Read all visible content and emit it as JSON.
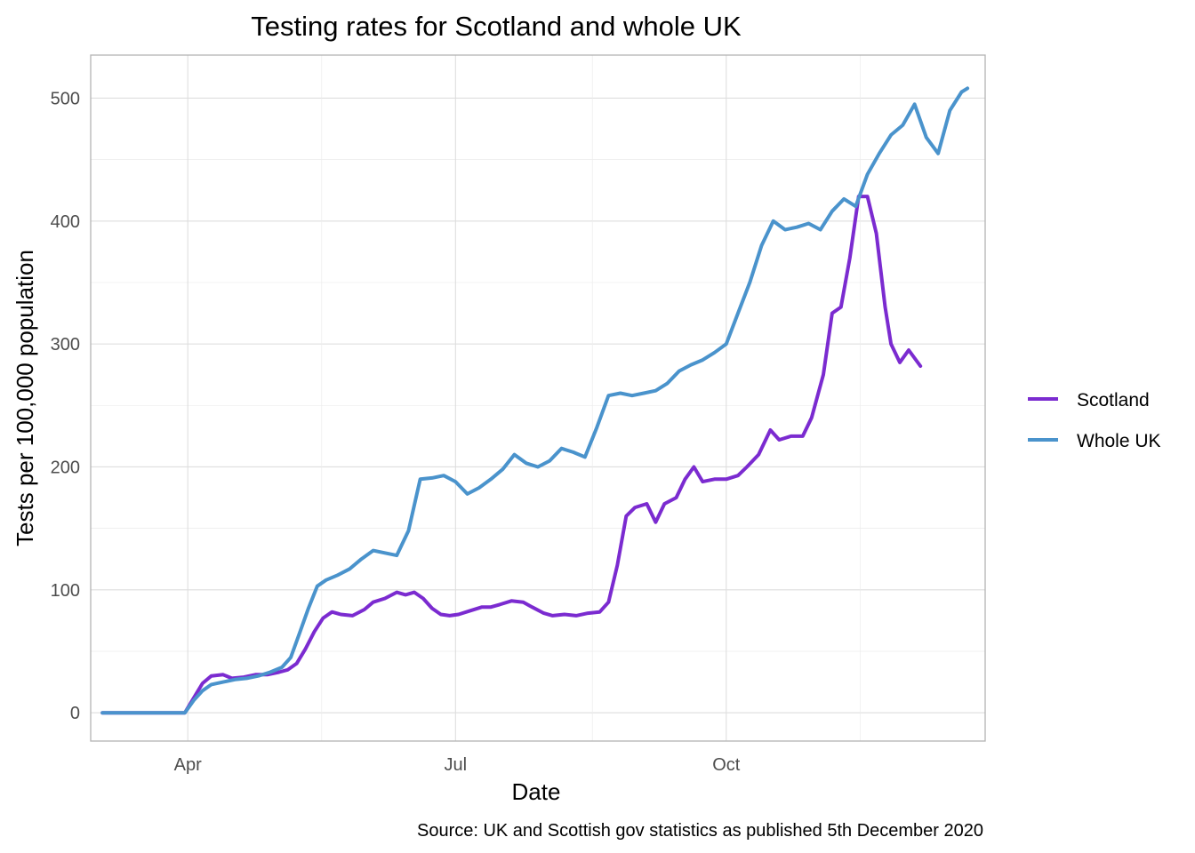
{
  "chart_data": {
    "type": "line",
    "title": "Testing rates for Scotland and whole UK",
    "xlabel": "Date",
    "ylabel": "Tests per 100,000 population",
    "caption": "Source: UK and Scottish gov statistics as published 5th December 2020",
    "x_ticks": [
      "Apr",
      "Jul",
      "Oct"
    ],
    "x_tick_dates": [
      "2020-04-01",
      "2020-07-01",
      "2020-10-01"
    ],
    "xlim": [
      "2020-02-28",
      "2020-12-28"
    ],
    "y_ticks": [
      0,
      100,
      200,
      300,
      400,
      500
    ],
    "ylim": [
      -23,
      535
    ],
    "grid": true,
    "legend_position": "right",
    "series": [
      {
        "name": "Scotland",
        "color": "#7b2bd0",
        "points": [
          [
            "2020-03-03",
            0
          ],
          [
            "2020-03-31",
            0
          ],
          [
            "2020-04-03",
            12
          ],
          [
            "2020-04-06",
            24
          ],
          [
            "2020-04-09",
            30
          ],
          [
            "2020-04-13",
            31
          ],
          [
            "2020-04-16",
            28
          ],
          [
            "2020-04-20",
            29
          ],
          [
            "2020-04-24",
            31
          ],
          [
            "2020-04-28",
            31
          ],
          [
            "2020-05-02",
            33
          ],
          [
            "2020-05-05",
            35
          ],
          [
            "2020-05-08",
            40
          ],
          [
            "2020-05-11",
            52
          ],
          [
            "2020-05-14",
            66
          ],
          [
            "2020-05-17",
            77
          ],
          [
            "2020-05-20",
            82
          ],
          [
            "2020-05-23",
            80
          ],
          [
            "2020-05-27",
            79
          ],
          [
            "2020-05-31",
            84
          ],
          [
            "2020-06-03",
            90
          ],
          [
            "2020-06-07",
            93
          ],
          [
            "2020-06-11",
            98
          ],
          [
            "2020-06-14",
            96
          ],
          [
            "2020-06-17",
            98
          ],
          [
            "2020-06-20",
            93
          ],
          [
            "2020-06-23",
            85
          ],
          [
            "2020-06-26",
            80
          ],
          [
            "2020-06-29",
            79
          ],
          [
            "2020-07-02",
            80
          ],
          [
            "2020-07-06",
            83
          ],
          [
            "2020-07-10",
            86
          ],
          [
            "2020-07-13",
            86
          ],
          [
            "2020-07-16",
            88
          ],
          [
            "2020-07-20",
            91
          ],
          [
            "2020-07-24",
            90
          ],
          [
            "2020-07-27",
            86
          ],
          [
            "2020-07-31",
            81
          ],
          [
            "2020-08-03",
            79
          ],
          [
            "2020-08-07",
            80
          ],
          [
            "2020-08-11",
            79
          ],
          [
            "2020-08-15",
            81
          ],
          [
            "2020-08-19",
            82
          ],
          [
            "2020-08-22",
            90
          ],
          [
            "2020-08-25",
            120
          ],
          [
            "2020-08-28",
            160
          ],
          [
            "2020-08-31",
            167
          ],
          [
            "2020-09-04",
            170
          ],
          [
            "2020-09-07",
            155
          ],
          [
            "2020-09-10",
            170
          ],
          [
            "2020-09-14",
            175
          ],
          [
            "2020-09-17",
            190
          ],
          [
            "2020-09-20",
            200
          ],
          [
            "2020-09-23",
            188
          ],
          [
            "2020-09-27",
            190
          ],
          [
            "2020-10-01",
            190
          ],
          [
            "2020-10-05",
            193
          ],
          [
            "2020-10-08",
            200
          ],
          [
            "2020-10-12",
            210
          ],
          [
            "2020-10-16",
            230
          ],
          [
            "2020-10-19",
            222
          ],
          [
            "2020-10-23",
            225
          ],
          [
            "2020-10-27",
            225
          ],
          [
            "2020-10-30",
            240
          ],
          [
            "2020-11-03",
            275
          ],
          [
            "2020-11-06",
            325
          ],
          [
            "2020-11-09",
            330
          ],
          [
            "2020-11-12",
            370
          ],
          [
            "2020-11-15",
            420
          ],
          [
            "2020-11-18",
            420
          ],
          [
            "2020-11-21",
            390
          ],
          [
            "2020-11-24",
            330
          ],
          [
            "2020-11-26",
            300
          ],
          [
            "2020-11-29",
            285
          ],
          [
            "2020-12-02",
            295
          ],
          [
            "2020-12-06",
            282
          ]
        ]
      },
      {
        "name": "Whole UK",
        "color": "#4a93cc",
        "points": [
          [
            "2020-03-03",
            0
          ],
          [
            "2020-03-31",
            0
          ],
          [
            "2020-04-03",
            10
          ],
          [
            "2020-04-06",
            18
          ],
          [
            "2020-04-09",
            23
          ],
          [
            "2020-04-13",
            25
          ],
          [
            "2020-04-17",
            27
          ],
          [
            "2020-04-21",
            28
          ],
          [
            "2020-04-25",
            30
          ],
          [
            "2020-04-29",
            33
          ],
          [
            "2020-05-03",
            37
          ],
          [
            "2020-05-06",
            45
          ],
          [
            "2020-05-09",
            65
          ],
          [
            "2020-05-12",
            85
          ],
          [
            "2020-05-15",
            103
          ],
          [
            "2020-05-18",
            108
          ],
          [
            "2020-05-22",
            112
          ],
          [
            "2020-05-26",
            117
          ],
          [
            "2020-05-30",
            125
          ],
          [
            "2020-06-03",
            132
          ],
          [
            "2020-06-07",
            130
          ],
          [
            "2020-06-11",
            128
          ],
          [
            "2020-06-15",
            148
          ],
          [
            "2020-06-19",
            190
          ],
          [
            "2020-06-23",
            191
          ],
          [
            "2020-06-27",
            193
          ],
          [
            "2020-07-01",
            188
          ],
          [
            "2020-07-05",
            178
          ],
          [
            "2020-07-09",
            183
          ],
          [
            "2020-07-13",
            190
          ],
          [
            "2020-07-17",
            198
          ],
          [
            "2020-07-21",
            210
          ],
          [
            "2020-07-25",
            203
          ],
          [
            "2020-07-29",
            200
          ],
          [
            "2020-08-02",
            205
          ],
          [
            "2020-08-06",
            215
          ],
          [
            "2020-08-10",
            212
          ],
          [
            "2020-08-14",
            208
          ],
          [
            "2020-08-18",
            232
          ],
          [
            "2020-08-22",
            258
          ],
          [
            "2020-08-26",
            260
          ],
          [
            "2020-08-30",
            258
          ],
          [
            "2020-09-03",
            260
          ],
          [
            "2020-09-07",
            262
          ],
          [
            "2020-09-11",
            268
          ],
          [
            "2020-09-15",
            278
          ],
          [
            "2020-09-19",
            283
          ],
          [
            "2020-09-23",
            287
          ],
          [
            "2020-09-27",
            293
          ],
          [
            "2020-10-01",
            300
          ],
          [
            "2020-10-05",
            325
          ],
          [
            "2020-10-09",
            350
          ],
          [
            "2020-10-13",
            380
          ],
          [
            "2020-10-17",
            400
          ],
          [
            "2020-10-21",
            393
          ],
          [
            "2020-10-25",
            395
          ],
          [
            "2020-10-29",
            398
          ],
          [
            "2020-11-02",
            393
          ],
          [
            "2020-11-06",
            408
          ],
          [
            "2020-11-10",
            418
          ],
          [
            "2020-11-14",
            412
          ],
          [
            "2020-11-18",
            438
          ],
          [
            "2020-11-22",
            455
          ],
          [
            "2020-11-26",
            470
          ],
          [
            "2020-11-30",
            478
          ],
          [
            "2020-12-04",
            495
          ],
          [
            "2020-12-08",
            468
          ],
          [
            "2020-12-12",
            455
          ],
          [
            "2020-12-16",
            490
          ],
          [
            "2020-12-20",
            505
          ],
          [
            "2020-12-22",
            508
          ]
        ]
      }
    ]
  }
}
